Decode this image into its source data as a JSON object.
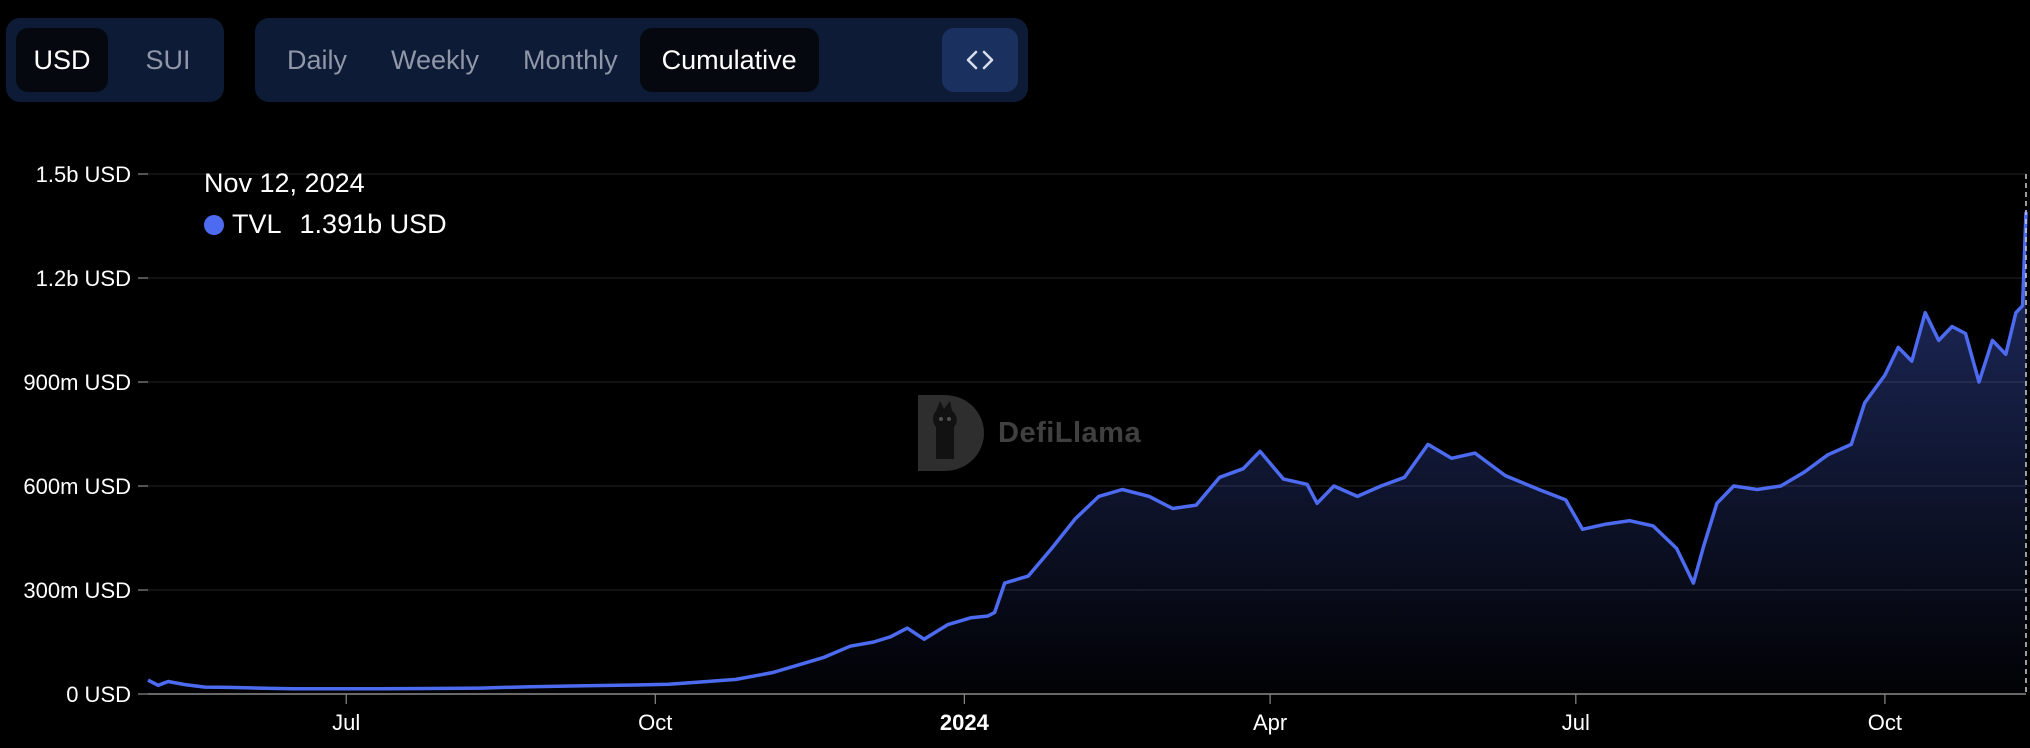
{
  "controls": {
    "currency": [
      {
        "label": "USD",
        "active": true
      },
      {
        "label": "SUI",
        "active": false
      }
    ],
    "period": [
      {
        "label": "Daily",
        "active": false
      },
      {
        "label": "Weekly",
        "active": false
      },
      {
        "label": "Monthly",
        "active": false
      },
      {
        "label": "Cumulative",
        "active": true
      }
    ],
    "embed_icon": "code-brackets-icon"
  },
  "tooltip": {
    "date": "Nov 12, 2024",
    "series": "TVL",
    "value": "1.391b USD",
    "dot_color": "#4d6bf0"
  },
  "watermark": {
    "text": "DefiLlama",
    "icon": "llama-logo"
  },
  "colors": {
    "line": "#4d6bf0",
    "background": "#000000",
    "control_bg": "#0e1b36",
    "grid": "#1e1e1e"
  },
  "chart_data": {
    "type": "area",
    "x_type": "date",
    "xlim": [
      "2023-05-03",
      "2024-11-12"
    ],
    "ylim": [
      0,
      1500000000
    ],
    "y_ticks": [
      0,
      300000000,
      600000000,
      900000000,
      1200000000,
      1500000000
    ],
    "y_tick_labels": [
      "0 USD",
      "300m USD",
      "600m USD",
      "900m USD",
      "1.2b USD",
      "1.5b USD"
    ],
    "x_ticks": [
      "2023-07-01",
      "2023-10-01",
      "2024-01-01",
      "2024-04-01",
      "2024-07-01",
      "2024-10-01"
    ],
    "x_tick_labels": [
      "Jul",
      "Oct",
      "2024",
      "Apr",
      "Jul",
      "Oct"
    ],
    "x_tick_bold": [
      false,
      false,
      true,
      false,
      false,
      false
    ],
    "grid": true,
    "series": [
      {
        "name": "TVL",
        "x": [
          "2023-05-03",
          "2023-05-06",
          "2023-05-09",
          "2023-05-14",
          "2023-05-20",
          "2023-05-27",
          "2023-06-05",
          "2023-06-15",
          "2023-06-25",
          "2023-07-10",
          "2023-07-25",
          "2023-08-10",
          "2023-08-25",
          "2023-09-10",
          "2023-09-25",
          "2023-10-05",
          "2023-10-15",
          "2023-10-25",
          "2023-11-05",
          "2023-11-12",
          "2023-11-20",
          "2023-11-28",
          "2023-12-05",
          "2023-12-10",
          "2023-12-15",
          "2023-12-20",
          "2023-12-27",
          "2024-01-03",
          "2024-01-08",
          "2024-01-10",
          "2024-01-13",
          "2024-01-20",
          "2024-01-27",
          "2024-02-03",
          "2024-02-10",
          "2024-02-17",
          "2024-02-25",
          "2024-03-03",
          "2024-03-10",
          "2024-03-17",
          "2024-03-24",
          "2024-03-29",
          "2024-04-05",
          "2024-04-12",
          "2024-04-15",
          "2024-04-20",
          "2024-04-27",
          "2024-05-04",
          "2024-05-11",
          "2024-05-18",
          "2024-05-25",
          "2024-06-01",
          "2024-06-10",
          "2024-06-20",
          "2024-06-28",
          "2024-07-03",
          "2024-07-10",
          "2024-07-17",
          "2024-07-24",
          "2024-07-31",
          "2024-08-05",
          "2024-08-08",
          "2024-08-12",
          "2024-08-17",
          "2024-08-24",
          "2024-08-31",
          "2024-09-07",
          "2024-09-14",
          "2024-09-21",
          "2024-09-25",
          "2024-10-01",
          "2024-10-05",
          "2024-10-09",
          "2024-10-13",
          "2024-10-17",
          "2024-10-21",
          "2024-10-25",
          "2024-10-29",
          "2024-11-02",
          "2024-11-06",
          "2024-11-09",
          "2024-11-11",
          "2024-11-12"
        ],
        "values": [
          40000000,
          25000000,
          36000000,
          27000000,
          20000000,
          19000000,
          17000000,
          15000000,
          15000000,
          15000000,
          16000000,
          17000000,
          21000000,
          24000000,
          26000000,
          28000000,
          35000000,
          42000000,
          62000000,
          82000000,
          105000000,
          138000000,
          150000000,
          165000000,
          190000000,
          158000000,
          200000000,
          220000000,
          225000000,
          235000000,
          320000000,
          340000000,
          420000000,
          505000000,
          570000000,
          590000000,
          570000000,
          535000000,
          545000000,
          625000000,
          650000000,
          700000000,
          620000000,
          605000000,
          550000000,
          600000000,
          570000000,
          600000000,
          625000000,
          720000000,
          680000000,
          695000000,
          630000000,
          590000000,
          560000000,
          475000000,
          490000000,
          500000000,
          485000000,
          420000000,
          320000000,
          425000000,
          550000000,
          600000000,
          590000000,
          600000000,
          640000000,
          690000000,
          720000000,
          840000000,
          920000000,
          1000000000,
          960000000,
          1100000000,
          1020000000,
          1060000000,
          1040000000,
          900000000,
          1020000000,
          980000000,
          1100000000,
          1120000000,
          1391000000
        ]
      }
    ]
  }
}
